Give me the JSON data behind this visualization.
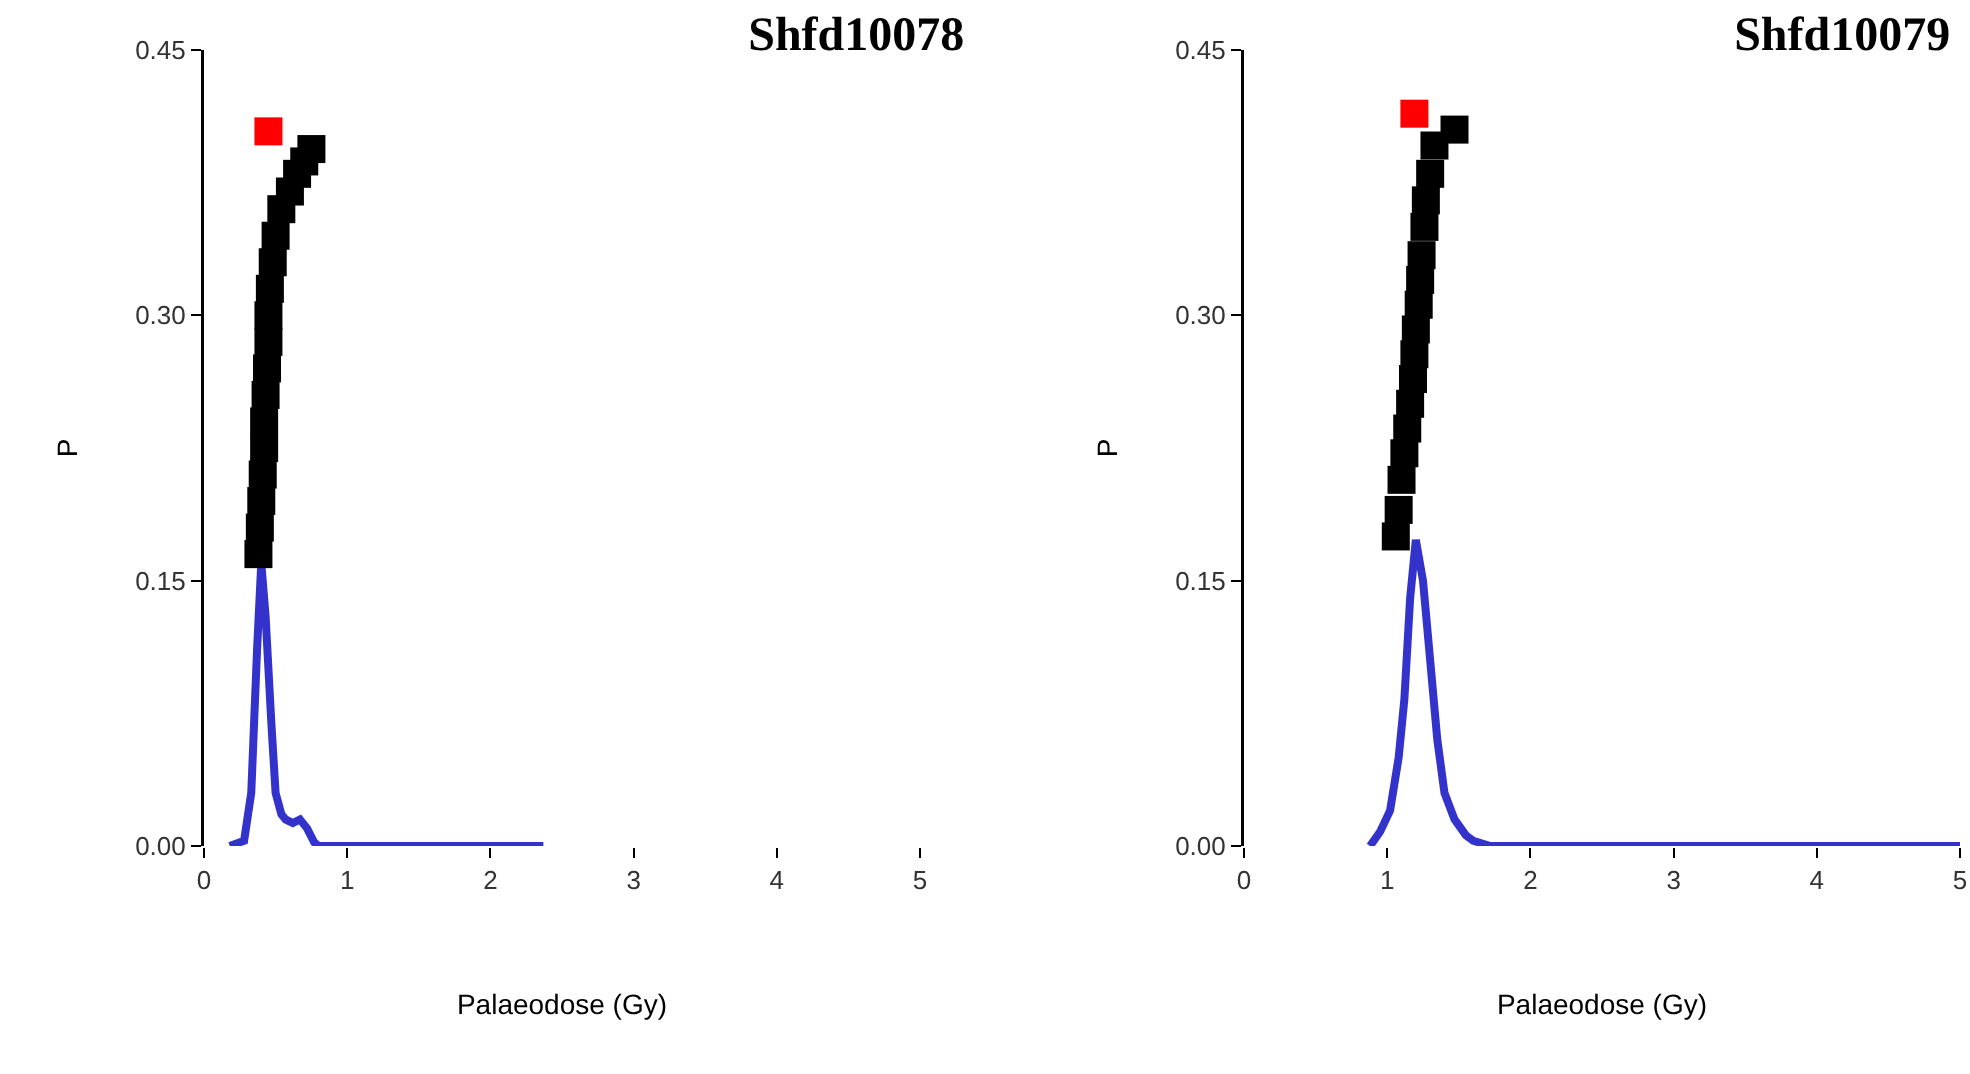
{
  "chart_data": [
    {
      "type": "scatter",
      "title": "Shfd10078",
      "xlabel": "Palaeodose (Gy)",
      "ylabel": "P",
      "xlim": [
        0,
        5
      ],
      "xticks": [
        0,
        1,
        2,
        3,
        4,
        5
      ],
      "ylim": [
        0,
        0.45
      ],
      "yticks": [
        {
          "value": 0,
          "label": "0.00"
        },
        {
          "value": 0.15,
          "label": "0.15"
        },
        {
          "value": 0.3,
          "label": "0.30"
        },
        {
          "value": 0.45,
          "label": "0.45"
        }
      ],
      "series": [
        {
          "type": "line",
          "color": "#3333cc",
          "marker": "none",
          "line_style": "solid",
          "x": [
            0.18,
            0.28,
            0.33,
            0.37,
            0.4,
            0.43,
            0.47,
            0.5,
            0.54,
            0.57,
            0.62,
            0.67,
            0.72,
            0.77,
            0.8,
            1.0,
            1.5,
            2.0,
            2.37
          ],
          "values": [
            0,
            0.003,
            0.03,
            0.11,
            0.16,
            0.13,
            0.07,
            0.03,
            0.018,
            0.015,
            0.013,
            0.015,
            0.01,
            0.002,
            0,
            0,
            0,
            0,
            0
          ]
        },
        {
          "type": "scatter",
          "color": "#000000",
          "marker": "square",
          "x": [
            0.38,
            0.39,
            0.4,
            0.41,
            0.42,
            0.42,
            0.43,
            0.44,
            0.45,
            0.45,
            0.46,
            0.48,
            0.5,
            0.54,
            0.6,
            0.65,
            0.7,
            0.75
          ],
          "values": [
            0.165,
            0.18,
            0.195,
            0.21,
            0.225,
            0.24,
            0.255,
            0.27,
            0.285,
            0.3,
            0.315,
            0.33,
            0.345,
            0.36,
            0.37,
            0.38,
            0.387,
            0.394
          ]
        },
        {
          "type": "scatter",
          "color": "#ff0000",
          "marker": "square",
          "x": [
            0.45
          ],
          "values": [
            0.404
          ]
        }
      ]
    },
    {
      "type": "scatter",
      "title": "Shfd10079",
      "xlabel": "Palaeodose (Gy)",
      "ylabel": "P",
      "xlim": [
        0,
        5
      ],
      "xticks": [
        0,
        1,
        2,
        3,
        4,
        5
      ],
      "ylim": [
        0,
        0.45
      ],
      "yticks": [
        {
          "value": 0,
          "label": "0.00"
        },
        {
          "value": 0.15,
          "label": "0.15"
        },
        {
          "value": 0.3,
          "label": "0.30"
        },
        {
          "value": 0.45,
          "label": "0.45"
        }
      ],
      "series": [
        {
          "type": "line",
          "color": "#3333cc",
          "marker": "none",
          "line_style": "solid",
          "x": [
            0.88,
            0.95,
            1.02,
            1.08,
            1.12,
            1.16,
            1.2,
            1.25,
            1.3,
            1.35,
            1.4,
            1.47,
            1.55,
            1.6,
            1.72,
            2.0,
            3.0,
            4.0,
            5.0
          ],
          "values": [
            0,
            0.008,
            0.02,
            0.05,
            0.083,
            0.14,
            0.173,
            0.15,
            0.105,
            0.06,
            0.03,
            0.015,
            0.006,
            0.003,
            0,
            0,
            0,
            0,
            0
          ]
        },
        {
          "type": "scatter",
          "color": "#000000",
          "marker": "square",
          "x": [
            1.06,
            1.08,
            1.1,
            1.12,
            1.14,
            1.16,
            1.18,
            1.19,
            1.2,
            1.22,
            1.23,
            1.24,
            1.26,
            1.27,
            1.3,
            1.33,
            1.47
          ],
          "values": [
            0.175,
            0.19,
            0.207,
            0.222,
            0.236,
            0.25,
            0.264,
            0.278,
            0.292,
            0.306,
            0.32,
            0.334,
            0.35,
            0.365,
            0.38,
            0.396,
            0.405
          ]
        },
        {
          "type": "scatter",
          "color": "#ff0000",
          "marker": "square",
          "x": [
            1.19
          ],
          "values": [
            0.414
          ]
        }
      ]
    }
  ]
}
